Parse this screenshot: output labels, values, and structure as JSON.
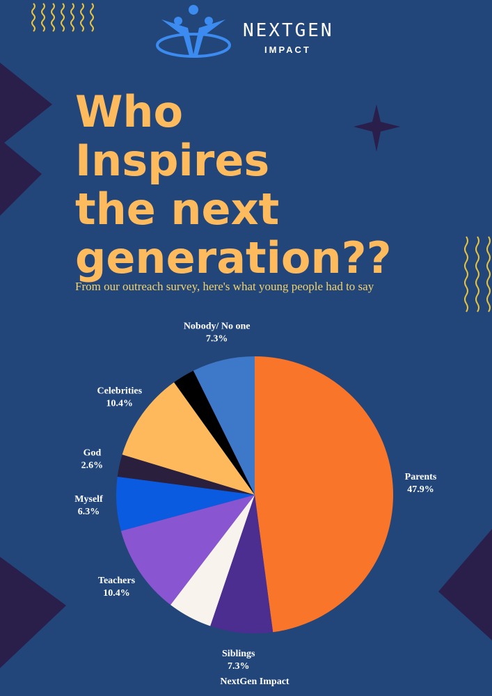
{
  "logo": {
    "name": "NEXTGEN",
    "tagline": "IMPACT"
  },
  "chart_data": {
    "type": "pie",
    "title": [
      "Who",
      "Inspires",
      "the next",
      "generation??"
    ],
    "subtitle": "From our outreach survey, here's what young people had to say",
    "source": "NextGen Impact",
    "categories": [
      "Parents",
      "Siblings",
      null,
      "Teachers",
      "Myself",
      "God",
      "Celebrities",
      null,
      "Nobody/ No one"
    ],
    "values": [
      47.9,
      7.3,
      5.2,
      10.4,
      6.3,
      2.6,
      10.4,
      2.6,
      7.3
    ],
    "value_labels": [
      "47.9%",
      "7.3%",
      null,
      "10.4%",
      "6.3%",
      "2.6%",
      "10.4%",
      null,
      "7.3%"
    ],
    "colors": [
      "#F97529",
      "#4B2E8F",
      "#F8F3EC",
      "#8A55D0",
      "#0B5BE0",
      "#2A1F3D",
      "#FDB95B",
      "#000000",
      "#3E78C8"
    ]
  }
}
